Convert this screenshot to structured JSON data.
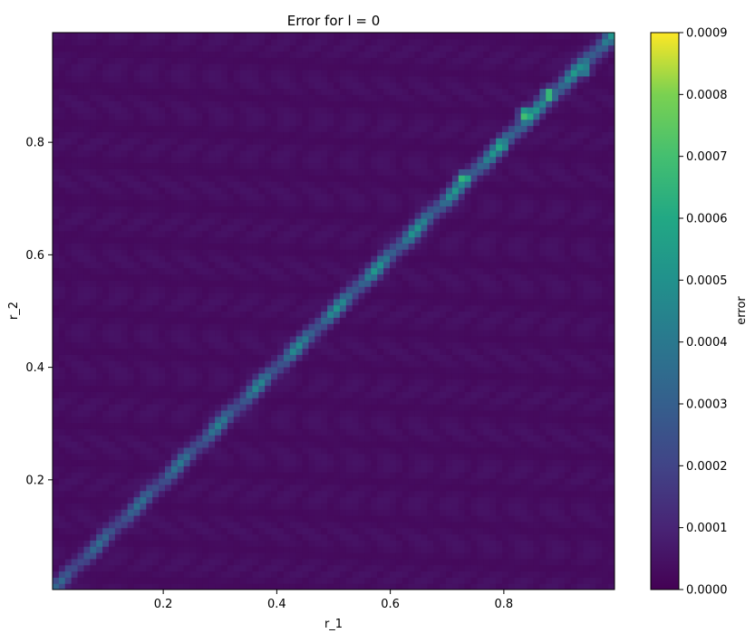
{
  "chart_data": {
    "type": "heatmap",
    "title": "Error for l = 0",
    "xlabel": "r_1",
    "ylabel": "r_2",
    "xlim": [
      0.005,
      0.995
    ],
    "ylim": [
      0.005,
      0.995
    ],
    "x_ticks": [
      0.2,
      0.4,
      0.6,
      0.8
    ],
    "y_ticks": [
      0.2,
      0.4,
      0.6,
      0.8
    ],
    "x_tick_labels": [
      "0.2",
      "0.4",
      "0.6",
      "0.8"
    ],
    "y_tick_labels": [
      "0.2",
      "0.4",
      "0.6",
      "0.8"
    ],
    "colormap": "viridis",
    "colorbar": {
      "label": "error",
      "range": [
        0,
        0.0009
      ],
      "ticks": [
        0,
        0.0001,
        0.0002,
        0.0003,
        0.0004,
        0.0005,
        0.0006,
        0.0007,
        0.0008,
        0.0009
      ],
      "tick_labels": [
        "0.0000",
        "0.0001",
        "0.0002",
        "0.0003",
        "0.0004",
        "0.0005",
        "0.0006",
        "0.0007",
        "0.0008",
        "0.0009"
      ]
    },
    "description_values": {
      "background_error": 4e-05,
      "diagonal_error_low_r": 0.0003,
      "diagonal_error_mid_r": 0.0005,
      "peak_points": [
        {
          "r_1": 0.73,
          "r_2": 0.735,
          "error": 0.00075
        },
        {
          "r_1": 0.795,
          "r_2": 0.795,
          "error": 0.0007
        },
        {
          "r_1": 0.84,
          "r_2": 0.85,
          "error": 0.00085
        },
        {
          "r_1": 0.88,
          "r_2": 0.885,
          "error": 0.0008
        },
        {
          "r_1": 0.94,
          "r_2": 0.93,
          "error": 0.0006
        }
      ]
    }
  }
}
